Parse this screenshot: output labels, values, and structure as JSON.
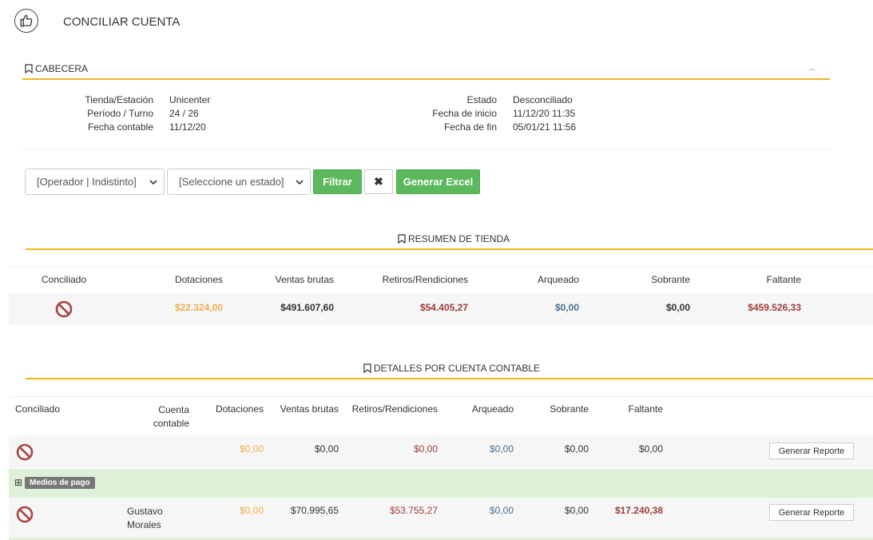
{
  "page": {
    "title": "CONCILIAR CUENTA"
  },
  "cabecera": {
    "title": "CABECERA",
    "collapse": "–",
    "left": [
      {
        "k": "Tienda/Estación",
        "v": "Unicenter"
      },
      {
        "k": "Período / Turno",
        "v": "24 / 26"
      },
      {
        "k": "Fecha contable",
        "v": "11/12/20"
      }
    ],
    "right": [
      {
        "k": "Estado",
        "v": "Desconciliado"
      },
      {
        "k": "Fecha de inicio",
        "v": "11/12/20 11:35"
      },
      {
        "k": "Fecha de fin",
        "v": "05/01/21 11:56"
      }
    ]
  },
  "filters": {
    "operator_select": "[Operador | Indistinto]",
    "state_select": "[Seleccione un estado]",
    "filter_label": "Filtrar",
    "clear_label": "✖",
    "excel_label": "Generar Excel"
  },
  "resumen": {
    "title": "RESUMEN DE TIENDA",
    "headers": [
      "Conciliado",
      "Dotaciones",
      "Ventas brutas",
      "Retiros/Rendiciones",
      "Arqueado",
      "Sobrante",
      "Faltante"
    ],
    "row": {
      "dotaciones": "$22.324,00",
      "ventas": "$491.607,60",
      "retiros": "$54.405,27",
      "arqueado": "$0,00",
      "sobrante": "$0,00",
      "faltante": "$459.526,33"
    }
  },
  "detalles": {
    "title": "DETALLES POR CUENTA CONTABLE",
    "headers": {
      "conciliado": "Conciliado",
      "cuenta1": "Cuenta",
      "cuenta2": "contable",
      "dotaciones": "Dotaciones",
      "ventas": "Ventas brutas",
      "retiros": "Retiros/Rendiciones",
      "arqueado": "Arqueado",
      "sobrante": "Sobrante",
      "faltante": "Faltante"
    },
    "rows": [
      {
        "cuenta1": "",
        "cuenta2": "",
        "dotaciones": "$0,00",
        "ventas": "$0,00",
        "retiros": "$0,00",
        "arqueado": "$0,00",
        "sobrante": "$0,00",
        "faltante": "$0,00",
        "btn": "Generar Reporte"
      },
      {
        "cuenta1": "Gustavo",
        "cuenta2": "Morales",
        "dotaciones": "$0,00",
        "ventas": "$70.995,65",
        "retiros": "$53.755,27",
        "arqueado": "$0,00",
        "sobrante": "$0,00",
        "faltante": "$17.240,38",
        "btn": "Generar Reporte"
      }
    ],
    "medios_label": "Medios de pago",
    "expand_glyph": "⊞"
  },
  "colors": {
    "gold": "#f0b324",
    "green": "#5cb85c",
    "row_green": "#dff0d8",
    "ban_red": "#a94442"
  }
}
